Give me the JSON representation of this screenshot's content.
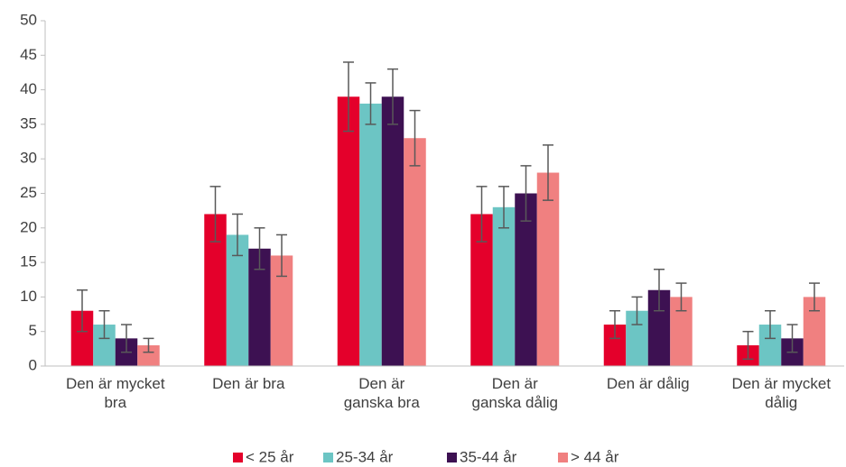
{
  "chart_data": {
    "type": "bar",
    "categories": [
      "Den är mycket\nbra",
      "Den är bra",
      "Den är\nganska bra",
      "Den är\nganska dålig",
      "Den är dålig",
      "Den är mycket\ndålig"
    ],
    "series": [
      {
        "name": "< 25 år",
        "color": "#e4002b",
        "values": [
          8,
          22,
          39,
          22,
          6,
          3
        ],
        "errors": [
          3,
          4,
          5,
          4,
          2,
          2
        ]
      },
      {
        "name": "25-34 år",
        "color": "#6cc5c4",
        "values": [
          6,
          19,
          38,
          23,
          8,
          6
        ],
        "errors": [
          2,
          3,
          3,
          3,
          2,
          2
        ]
      },
      {
        "name": "35-44 år",
        "color": "#3d1152",
        "values": [
          4,
          17,
          39,
          25,
          11,
          4
        ],
        "errors": [
          2,
          3,
          4,
          4,
          3,
          2
        ]
      },
      {
        "name": "> 44 år",
        "color": "#f08080",
        "values": [
          3,
          16,
          33,
          28,
          10,
          10
        ],
        "errors": [
          1,
          3,
          4,
          4,
          2,
          2
        ]
      }
    ],
    "ylim": [
      0,
      50
    ],
    "yticks": [
      0,
      5,
      10,
      15,
      20,
      25,
      30,
      35,
      40,
      45,
      50
    ],
    "grid": false,
    "error_color": "#595959",
    "legend": "bottom"
  }
}
